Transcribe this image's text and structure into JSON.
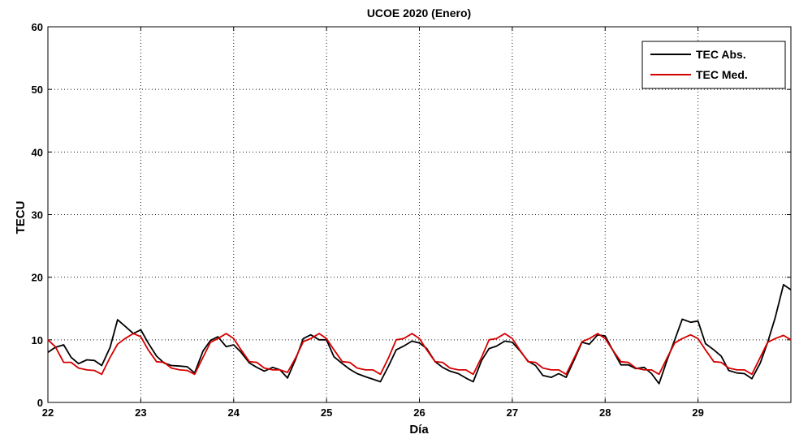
{
  "chart_data": {
    "type": "line",
    "title": "UCOE 2020 (Enero)",
    "xlabel": "Día",
    "ylabel": "TECU",
    "xlim": [
      22,
      30
    ],
    "ylim": [
      0,
      60
    ],
    "x_ticks": [
      22,
      23,
      24,
      25,
      26,
      27,
      28,
      29
    ],
    "y_ticks": [
      0,
      10,
      20,
      30,
      40,
      50,
      60
    ],
    "grid": true,
    "legend_position": "top-right",
    "series": [
      {
        "name": "TEC Abs.",
        "color": "#000000",
        "x": [
          22.0,
          22.08,
          22.17,
          22.25,
          22.33,
          22.42,
          22.5,
          22.58,
          22.67,
          22.75,
          22.83,
          22.92,
          23.0,
          23.08,
          23.17,
          23.25,
          23.33,
          23.42,
          23.5,
          23.58,
          23.67,
          23.75,
          23.83,
          23.92,
          24.0,
          24.08,
          24.17,
          24.25,
          24.33,
          24.42,
          24.5,
          24.58,
          24.67,
          24.75,
          24.83,
          24.92,
          25.0,
          25.08,
          25.17,
          25.25,
          25.33,
          25.42,
          25.5,
          25.58,
          25.67,
          25.75,
          25.83,
          25.92,
          26.0,
          26.08,
          26.17,
          26.25,
          26.33,
          26.42,
          26.5,
          26.58,
          26.67,
          26.75,
          26.83,
          26.92,
          27.0,
          27.08,
          27.17,
          27.25,
          27.33,
          27.42,
          27.5,
          27.58,
          27.67,
          27.75,
          27.83,
          27.92,
          28.0,
          28.08,
          28.17,
          28.25,
          28.33,
          28.42,
          28.5,
          28.58,
          28.67,
          28.75,
          28.83,
          28.92,
          29.0,
          29.08,
          29.17,
          29.25,
          29.33,
          29.42,
          29.5,
          29.58,
          29.67,
          29.75,
          29.83,
          29.92,
          30.0
        ],
        "values": [
          8.0,
          8.8,
          9.2,
          7.2,
          6.2,
          6.8,
          6.7,
          5.9,
          8.8,
          13.2,
          12.2,
          11.0,
          11.6,
          9.5,
          7.4,
          6.3,
          5.9,
          5.8,
          5.7,
          4.7,
          8.2,
          9.9,
          10.5,
          8.9,
          9.2,
          8.0,
          6.3,
          5.6,
          5.0,
          5.6,
          5.2,
          3.9,
          7.0,
          10.2,
          10.8,
          10.0,
          10.0,
          7.3,
          6.2,
          5.3,
          4.6,
          4.1,
          3.7,
          3.3,
          5.9,
          8.4,
          9.0,
          9.8,
          9.5,
          8.6,
          6.5,
          5.6,
          5.0,
          4.6,
          3.9,
          3.3,
          6.7,
          8.6,
          9.0,
          9.8,
          9.6,
          8.3,
          6.6,
          5.9,
          4.3,
          4.0,
          4.6,
          4.0,
          6.9,
          9.6,
          9.3,
          10.8,
          10.6,
          8.4,
          6.0,
          6.0,
          5.4,
          5.6,
          4.6,
          3.0,
          6.9,
          10.0,
          13.3,
          12.8,
          13.0,
          9.4,
          8.4,
          7.4,
          5.1,
          4.7,
          4.6,
          3.8,
          6.3,
          9.6,
          13.5,
          18.8,
          18.0
        ]
      },
      {
        "name": "TEC Med.",
        "color": "#d40000",
        "x": [
          22.0,
          22.08,
          22.17,
          22.25,
          22.33,
          22.42,
          22.5,
          22.58,
          22.67,
          22.75,
          22.83,
          22.92,
          23.0,
          23.08,
          23.17,
          23.25,
          23.33,
          23.42,
          23.5,
          23.58,
          23.67,
          23.75,
          23.83,
          23.92,
          24.0,
          24.08,
          24.17,
          24.25,
          24.33,
          24.42,
          24.5,
          24.58,
          24.67,
          24.75,
          24.83,
          24.92,
          25.0,
          25.08,
          25.17,
          25.25,
          25.33,
          25.42,
          25.5,
          25.58,
          25.67,
          25.75,
          25.83,
          25.92,
          26.0,
          26.08,
          26.17,
          26.25,
          26.33,
          26.42,
          26.5,
          26.58,
          26.67,
          26.75,
          26.83,
          26.92,
          27.0,
          27.08,
          27.17,
          27.25,
          27.33,
          27.42,
          27.5,
          27.58,
          27.67,
          27.75,
          27.83,
          27.92,
          28.0,
          28.08,
          28.17,
          28.25,
          28.33,
          28.42,
          28.5,
          28.58,
          28.67,
          28.75,
          28.83,
          28.92,
          29.0,
          29.08,
          29.17,
          29.25,
          29.33,
          29.42,
          29.5,
          29.58,
          29.67,
          29.75,
          29.83,
          29.92,
          30.0
        ],
        "values": [
          10.0,
          8.9,
          6.4,
          6.4,
          5.5,
          5.2,
          5.1,
          4.5,
          7.2,
          9.3,
          10.2,
          11.0,
          10.5,
          8.4,
          6.5,
          6.4,
          5.5,
          5.2,
          5.1,
          4.5,
          7.2,
          9.6,
          10.2,
          11.0,
          10.2,
          8.4,
          6.5,
          6.4,
          5.5,
          5.2,
          5.2,
          4.8,
          7.2,
          9.7,
          10.2,
          11.0,
          10.2,
          8.4,
          6.5,
          6.4,
          5.5,
          5.2,
          5.2,
          4.5,
          7.2,
          10.0,
          10.2,
          11.0,
          10.2,
          8.4,
          6.5,
          6.4,
          5.5,
          5.2,
          5.2,
          4.5,
          7.2,
          10.0,
          10.2,
          11.0,
          10.2,
          8.4,
          6.5,
          6.4,
          5.5,
          5.2,
          5.2,
          4.5,
          7.2,
          9.7,
          10.2,
          11.0,
          10.2,
          8.4,
          6.5,
          6.4,
          5.5,
          5.2,
          5.2,
          4.5,
          7.2,
          9.5,
          10.2,
          10.8,
          10.2,
          8.4,
          6.5,
          6.4,
          5.5,
          5.2,
          5.2,
          4.5,
          7.2,
          9.6,
          10.2,
          10.7,
          10.0
        ]
      }
    ]
  }
}
